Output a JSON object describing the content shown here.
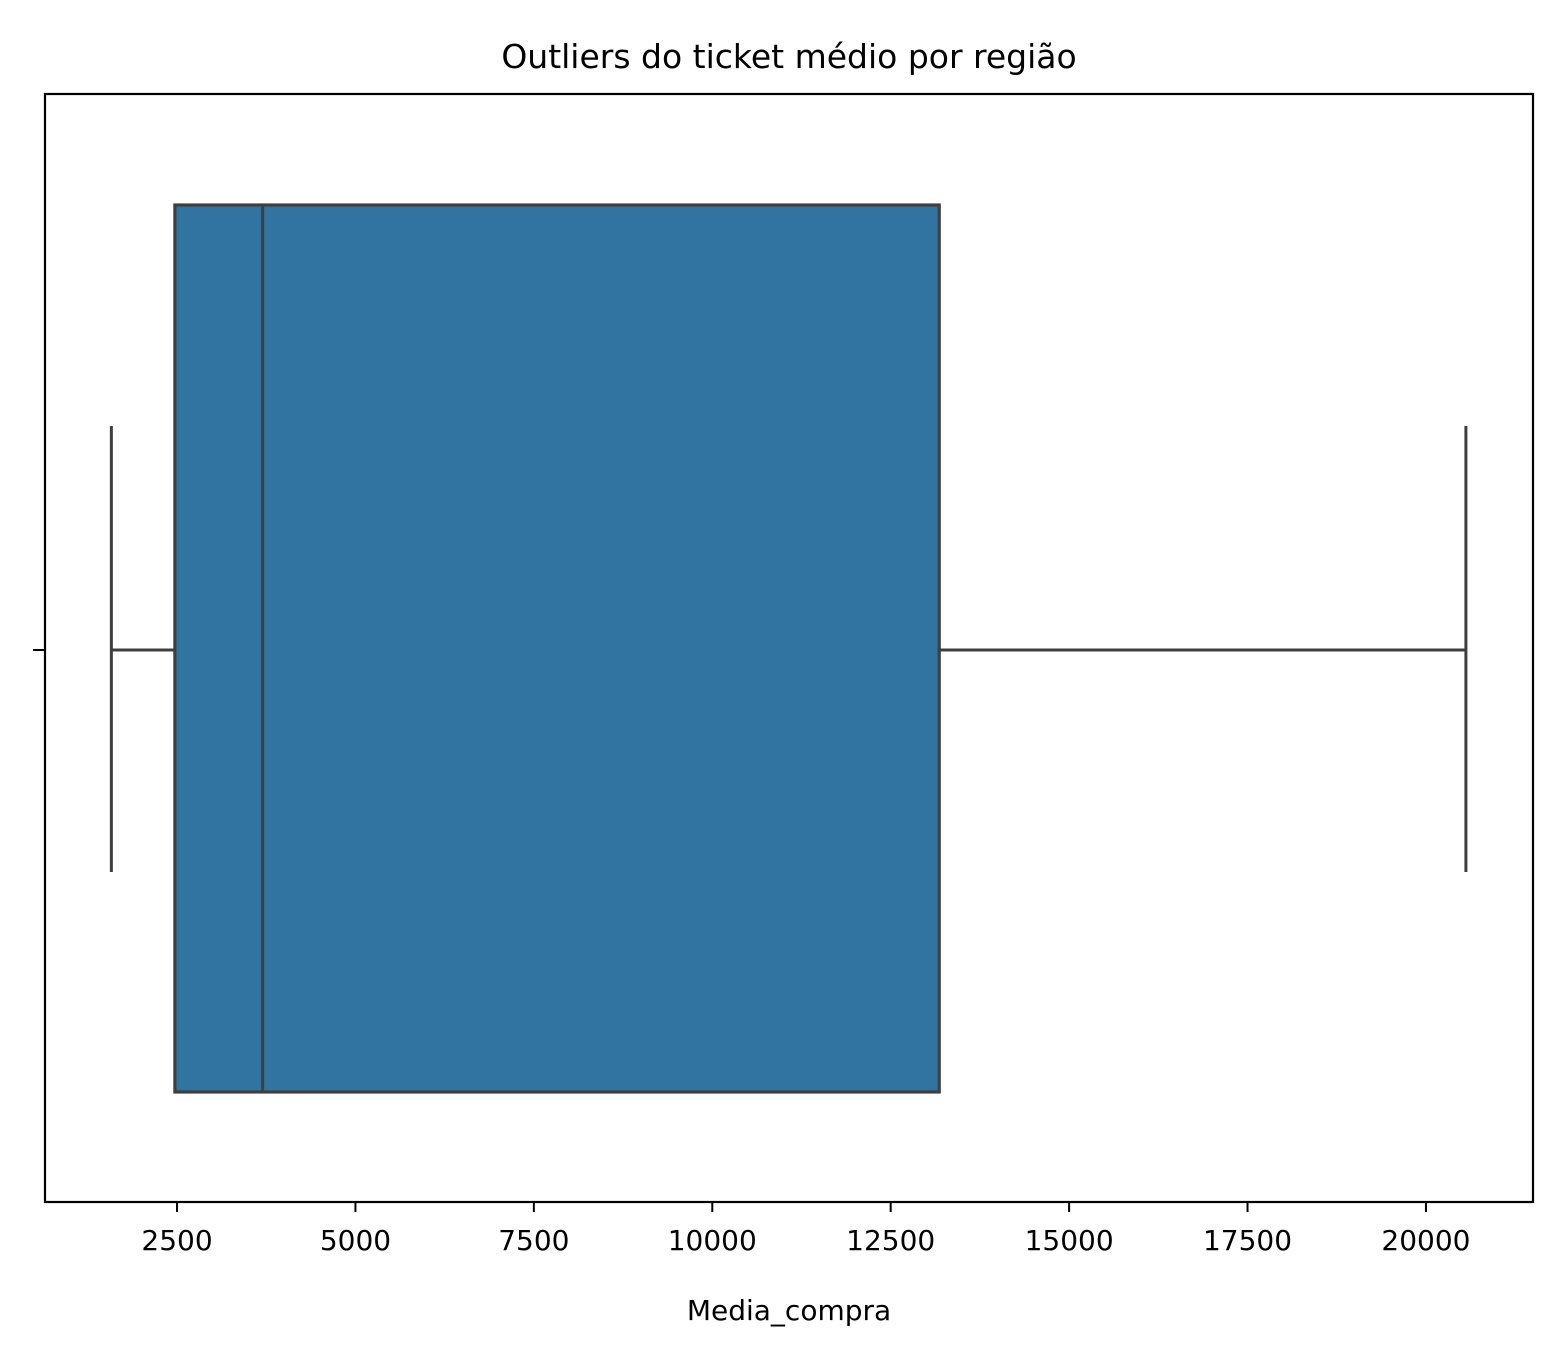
{
  "chart_data": {
    "type": "boxplot",
    "title": "Outliers do ticket médio por região",
    "xlabel": "Media_compra",
    "ylabel": "",
    "orientation": "horizontal",
    "xlim": [
      650,
      21500
    ],
    "x_ticks": [
      2500,
      5000,
      7500,
      10000,
      12500,
      15000,
      17500,
      20000
    ],
    "x_tick_labels": [
      "2500",
      "5000",
      "7500",
      "10000",
      "12500",
      "15000",
      "17500",
      "20000"
    ],
    "y_ticks": [
      ""
    ],
    "grid": false,
    "legend": "none",
    "box": {
      "whisker_low": 1580,
      "q1": 2470,
      "median": 3700,
      "q3": 13180,
      "whisker_high": 20560,
      "outliers": []
    },
    "colors": {
      "box_fill": "#3274a1",
      "box_line": "#3f3f3f",
      "axes": "#000000"
    }
  }
}
